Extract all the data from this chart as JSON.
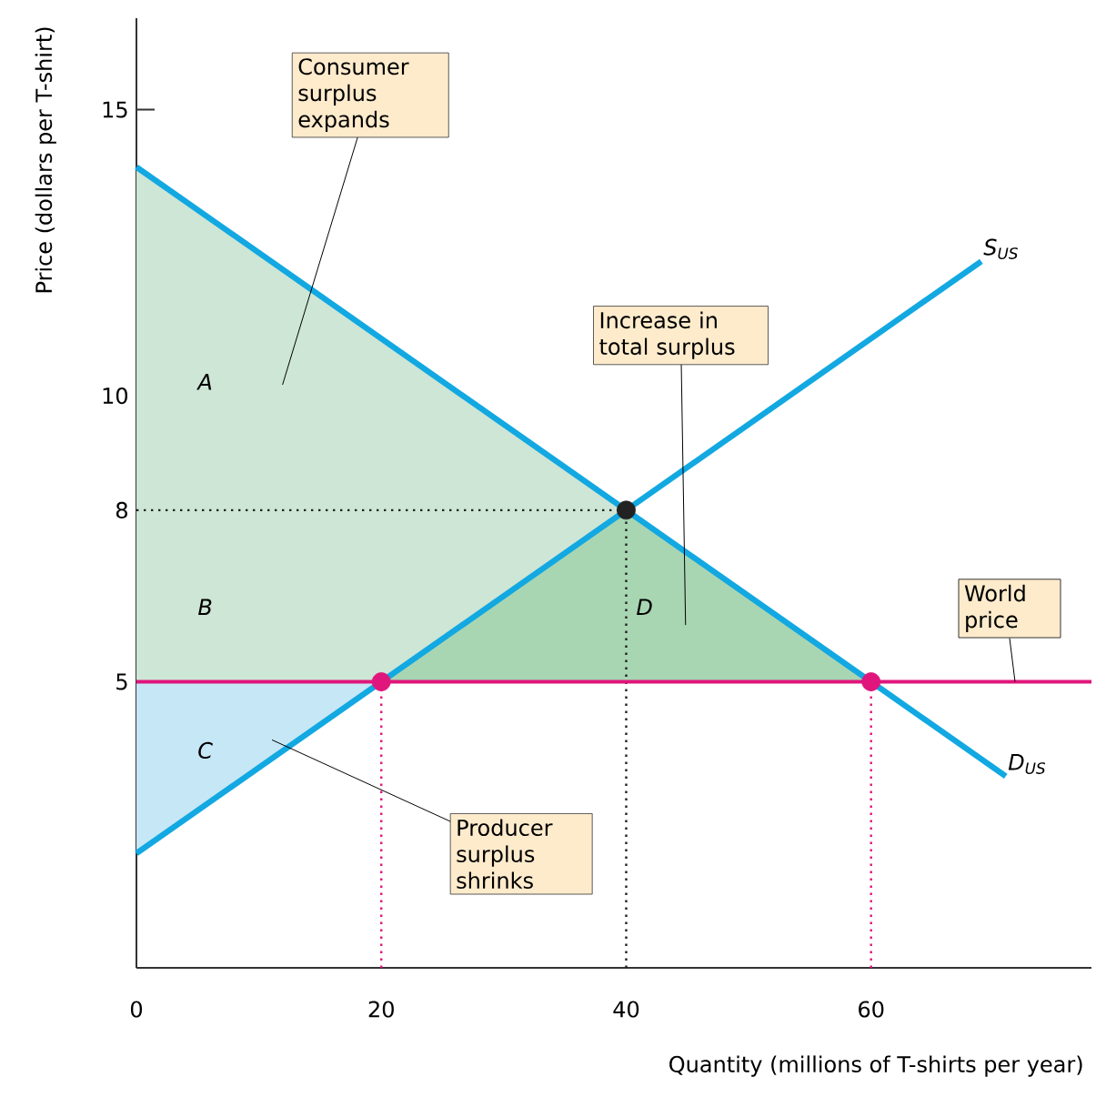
{
  "chart_data": {
    "type": "line",
    "xlabel": "Quantity (millions of T-shirts per year)",
    "ylabel": "Price (dollars per T-shirt)",
    "xlim": [
      0,
      78
    ],
    "ylim": [
      0,
      16.6
    ],
    "xticks": [
      0,
      20,
      40,
      60
    ],
    "yticks": [
      5,
      8,
      10,
      15
    ],
    "series": [
      {
        "type": "area",
        "color": "#cde6d5",
        "x": [
          0,
          60,
          0
        ],
        "values": [
          14,
          5,
          5
        ]
      },
      {
        "type": "area",
        "color": "#c6e7f6",
        "x": [
          0,
          20,
          0
        ],
        "values": [
          2,
          5,
          5
        ]
      },
      {
        "type": "area",
        "color": "#a8d6b3",
        "x": [
          20,
          40,
          60
        ],
        "values": [
          5,
          8,
          5
        ]
      },
      {
        "color": "#222222",
        "line_style": "dotted",
        "x": [
          0,
          40
        ],
        "values": [
          8,
          8
        ]
      },
      {
        "color": "#222222",
        "line_style": "dotted",
        "x": [
          40,
          40
        ],
        "values": [
          0,
          8
        ]
      },
      {
        "color": "#e0167c",
        "line_style": "dotted",
        "x": [
          20,
          20
        ],
        "values": [
          0,
          5
        ]
      },
      {
        "color": "#e0167c",
        "line_style": "dotted",
        "x": [
          60,
          60
        ],
        "values": [
          0,
          5
        ]
      },
      {
        "name": "S$_{US}$",
        "color": "#12a8e2",
        "x": [
          0,
          69
        ],
        "values": [
          2,
          12.35
        ]
      },
      {
        "name": "D$_{US}$",
        "color": "#12a8e2",
        "x": [
          0,
          71
        ],
        "values": [
          14,
          3.35
        ]
      },
      {
        "type": "scatter",
        "marker": "circle",
        "color": "#e0167c",
        "x": [
          20,
          60
        ],
        "values": [
          5,
          5
        ]
      },
      {
        "type": "scatter",
        "marker": "circle",
        "color": "#222222",
        "x": [
          40
        ],
        "values": [
          8
        ]
      }
    ],
    "ref_lines": [
      {
        "axis": "y",
        "value": 5,
        "label": "World price",
        "color": "#e0167c"
      }
    ],
    "annotations": [
      "A",
      "B",
      "C",
      "D",
      "Consumer surplus expands",
      "Increase in total surplus",
      "Producer surplus shrinks"
    ]
  }
}
